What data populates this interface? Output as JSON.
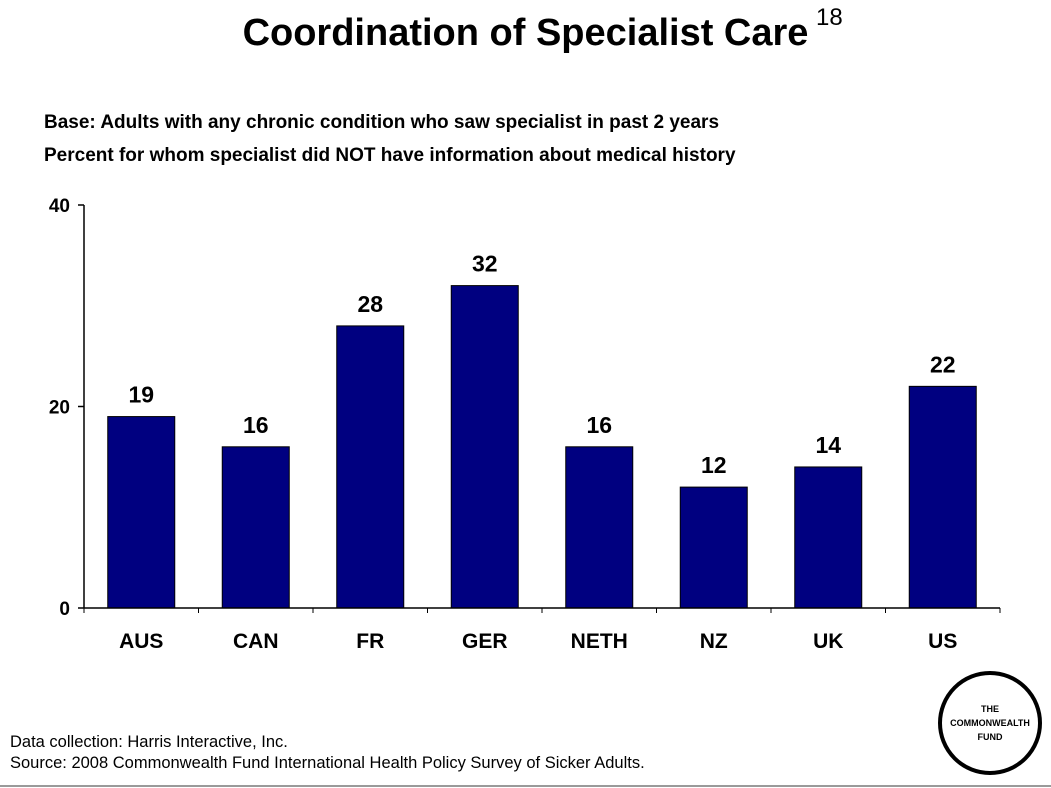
{
  "slide": {
    "title": "Coordination of Specialist Care",
    "number": "18",
    "subtitle_base": "Base: Adults with any chronic condition who saw specialist in past 2 years",
    "subtitle_measure": "Percent for whom specialist did NOT have information about medical history"
  },
  "chart_data": {
    "type": "bar",
    "categories": [
      "AUS",
      "CAN",
      "FR",
      "GER",
      "NETH",
      "NZ",
      "UK",
      "US"
    ],
    "values": [
      19,
      16,
      28,
      32,
      16,
      12,
      14,
      22
    ],
    "ylim": [
      0,
      40
    ],
    "yticks": [
      "0",
      "20",
      "40"
    ],
    "bar_color": "#000080",
    "grid": false,
    "legend": "none",
    "data_labels": true
  },
  "footer": {
    "data_collection": "Data collection: Harris Interactive, Inc.",
    "source": "Source: 2008 Commonwealth Fund International Health Policy Survey of Sicker Adults."
  },
  "logo": {
    "line1": "THE",
    "line2": "COMMONWEALTH",
    "line3": "FUND"
  }
}
